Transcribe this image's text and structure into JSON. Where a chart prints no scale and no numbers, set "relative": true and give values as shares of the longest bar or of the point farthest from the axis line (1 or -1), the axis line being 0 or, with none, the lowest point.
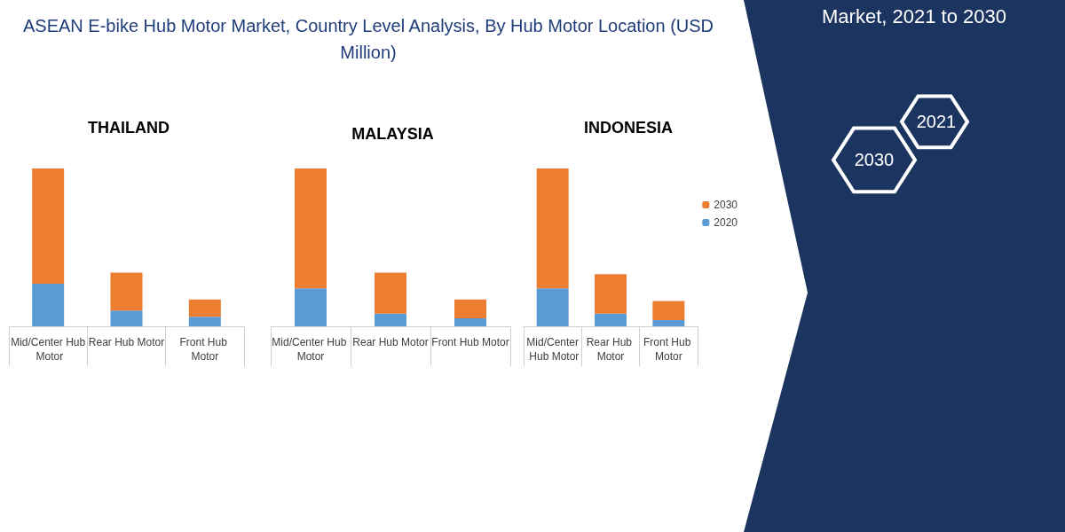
{
  "chart_data": [
    {
      "type": "bar",
      "title": "THAILAND",
      "categories": [
        "Mid/Center Hub Motor",
        "Rear Hub Motor",
        "Front Hub Motor"
      ],
      "stacked": true,
      "relative": true,
      "legend": false,
      "series": [
        {
          "color": "#5b9bd5",
          "values": [
            0.27,
            0.1,
            0.06
          ]
        },
        {
          "color": "#ed7d31",
          "values": [
            0.73,
            0.24,
            0.11
          ]
        }
      ]
    },
    {
      "type": "bar",
      "title": "MALAYSIA",
      "categories": [
        "Mid/Center Hub Motor",
        "Rear Hub Motor",
        "Front Hub Motor"
      ],
      "stacked": true,
      "relative": true,
      "legend": false,
      "series": [
        {
          "color": "#5b9bd5",
          "values": [
            0.24,
            0.08,
            0.05
          ]
        },
        {
          "color": "#ed7d31",
          "values": [
            0.76,
            0.26,
            0.12
          ]
        }
      ]
    },
    {
      "type": "bar",
      "title": "INDONESIA",
      "categories": [
        "Mid/Center Hub Motor",
        "Rear Hub Motor",
        "Front Hub Motor"
      ],
      "stacked": true,
      "relative": true,
      "legend": "right",
      "series": [
        {
          "name": "2020",
          "color": "#5b9bd5",
          "values": [
            0.24,
            0.08,
            0.04
          ]
        },
        {
          "name": "2030",
          "color": "#ed7d31",
          "values": [
            0.76,
            0.25,
            0.12
          ]
        }
      ]
    },
    {
      "type": "other",
      "title": "ASEAN E-bike Hub Motor Market, Country Level Analysis, By Hub Motor Location (USD Million)",
      "annotations": [
        "Market, 2021 to 2030",
        "2030",
        "2021"
      ]
    }
  ]
}
